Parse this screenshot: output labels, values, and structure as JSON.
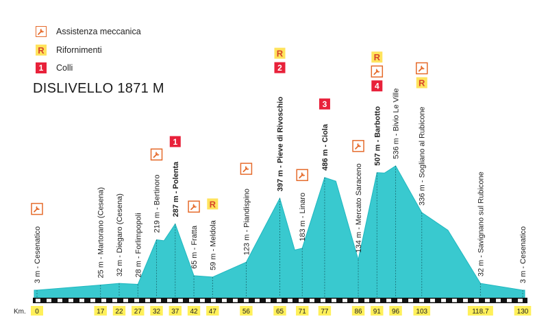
{
  "legend": [
    {
      "kind": "wrench",
      "label": "Assistenza meccanica",
      "icon": "wrench-icon"
    },
    {
      "kind": "refuel",
      "label": "Rifornimenti",
      "badge": "R"
    },
    {
      "kind": "climb",
      "label": "Colli",
      "badge": "1"
    }
  ],
  "title": "DISLIVELLO 1871 M",
  "km_label": "Km.",
  "colors": {
    "profile_fill": "#39c9cf",
    "profile_stroke": "#1fb7bf",
    "wrench": "#e56a2a",
    "refuel_bg": "#ffe35c",
    "refuel_text": "#d6452a",
    "climb_bg": "#e8213a",
    "km_tag_bg": "#fff05a",
    "axis": "#111111"
  },
  "chart_data": {
    "type": "area",
    "title": "DISLIVELLO 1871 M",
    "x_unit": "Km.",
    "xlim": [
      0,
      130
    ],
    "profile": [
      {
        "km": 0,
        "alt": 3
      },
      {
        "km": 17,
        "alt": 25
      },
      {
        "km": 22,
        "alt": 32
      },
      {
        "km": 27,
        "alt": 28
      },
      {
        "km": 32,
        "alt": 219
      },
      {
        "km": 34,
        "alt": 215
      },
      {
        "km": 37,
        "alt": 287
      },
      {
        "km": 42,
        "alt": 65
      },
      {
        "km": 47,
        "alt": 59
      },
      {
        "km": 56,
        "alt": 123
      },
      {
        "km": 65,
        "alt": 397
      },
      {
        "km": 69,
        "alt": 175
      },
      {
        "km": 71,
        "alt": 183
      },
      {
        "km": 77,
        "alt": 486
      },
      {
        "km": 80,
        "alt": 470
      },
      {
        "km": 86,
        "alt": 134
      },
      {
        "km": 91,
        "alt": 507
      },
      {
        "km": 93,
        "alt": 505
      },
      {
        "km": 96,
        "alt": 536
      },
      {
        "km": 103,
        "alt": 336
      },
      {
        "km": 110,
        "alt": 260
      },
      {
        "km": 118.7,
        "alt": 32
      },
      {
        "km": 130,
        "alt": 3
      }
    ],
    "waypoints": [
      {
        "km": 0,
        "km_label": "0",
        "label": "3 m - Cesenatico",
        "bold": false,
        "alt": 3,
        "icons": [
          "wrench"
        ]
      },
      {
        "km": 17,
        "km_label": "17",
        "label": "25 m - Martorano (Cesena)",
        "bold": false,
        "alt": 25,
        "icons": []
      },
      {
        "km": 22,
        "km_label": "22",
        "label": "32 m - Diegaro (Cesena)",
        "bold": false,
        "alt": 32,
        "icons": []
      },
      {
        "km": 27,
        "km_label": "27",
        "label": "28 m - Forlimpopoli",
        "bold": false,
        "alt": 28,
        "icons": []
      },
      {
        "km": 32,
        "km_label": "32",
        "label": "219 m - Bertinoro",
        "bold": false,
        "alt": 219,
        "icons": [
          "wrench"
        ]
      },
      {
        "km": 37,
        "km_label": "37",
        "label": "287 m - Polenta",
        "bold": true,
        "alt": 287,
        "icons": [
          "climb:1"
        ]
      },
      {
        "km": 42,
        "km_label": "42",
        "label": "65 m - Fratta",
        "bold": false,
        "alt": 65,
        "icons": [
          "wrench"
        ]
      },
      {
        "km": 47,
        "km_label": "47",
        "label": "59 m - Meldola",
        "bold": false,
        "alt": 59,
        "icons": [
          "refuel"
        ]
      },
      {
        "km": 56,
        "km_label": "56",
        "label": "123 m - Piandispino",
        "bold": false,
        "alt": 123,
        "icons": [
          "wrench"
        ]
      },
      {
        "km": 65,
        "km_label": "65",
        "label": "397 m - Pieve di Rivoschio",
        "bold": true,
        "alt": 397,
        "icons": [
          "climb:2",
          "refuel"
        ]
      },
      {
        "km": 71,
        "km_label": "71",
        "label": "183 m - Linaro",
        "bold": false,
        "alt": 183,
        "icons": [
          "wrench"
        ]
      },
      {
        "km": 77,
        "km_label": "77",
        "label": "486 m - Ciola",
        "bold": true,
        "alt": 486,
        "icons": [
          "climb:3"
        ]
      },
      {
        "km": 86,
        "km_label": "86",
        "label": "134 m - Mercato Saraceno",
        "bold": false,
        "alt": 134,
        "icons": [
          "wrench"
        ]
      },
      {
        "km": 91,
        "km_label": "91",
        "label": "507 m - Barbotto",
        "bold": true,
        "alt": 507,
        "icons": [
          "climb:4",
          "wrench",
          "refuel"
        ]
      },
      {
        "km": 96,
        "km_label": "96",
        "label": "536 m - Bivio Le Ville",
        "bold": false,
        "alt": 536,
        "icons": []
      },
      {
        "km": 103,
        "km_label": "103",
        "label": "336 m - Sogliano al Rubicone",
        "bold": false,
        "alt": 336,
        "icons": [
          "refuel",
          "wrench"
        ]
      },
      {
        "km": 118.7,
        "km_label": "118.7",
        "label": "32 m - Savignano sul Rubicone",
        "bold": false,
        "alt": 32,
        "icons": []
      },
      {
        "km": 130,
        "km_label": "130",
        "label": "3 m - Cesenatico",
        "bold": false,
        "alt": 3,
        "icons": []
      }
    ]
  }
}
